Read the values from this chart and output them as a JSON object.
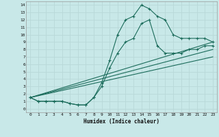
{
  "background_color": "#c8e8e8",
  "grid_color": "#b8d8d8",
  "line_color": "#1a6b5a",
  "xlabel": "Humidex (Indice chaleur)",
  "xlim": [
    -0.5,
    23.5
  ],
  "ylim": [
    -0.5,
    14.5
  ],
  "xticks": [
    0,
    1,
    2,
    3,
    4,
    5,
    6,
    7,
    8,
    9,
    10,
    11,
    12,
    13,
    14,
    15,
    16,
    17,
    18,
    19,
    20,
    21,
    22,
    23
  ],
  "yticks": [
    0,
    1,
    2,
    3,
    4,
    5,
    6,
    7,
    8,
    9,
    10,
    11,
    12,
    13,
    14
  ],
  "curve1_x": [
    0,
    1,
    2,
    3,
    4,
    5,
    6,
    7,
    8,
    9,
    10,
    11,
    12,
    13,
    14,
    15,
    16,
    17,
    18,
    19,
    20,
    21,
    22,
    23
  ],
  "curve1_y": [
    1.5,
    1.0,
    1.0,
    1.0,
    1.0,
    0.7,
    0.5,
    0.5,
    1.5,
    3.5,
    6.5,
    10.0,
    12.0,
    12.5,
    14.0,
    13.5,
    12.5,
    12.0,
    10.0,
    9.5,
    9.5,
    9.5,
    9.5,
    9.0
  ],
  "curve2_x": [
    0,
    1,
    2,
    3,
    4,
    5,
    6,
    7,
    8,
    9,
    10,
    11,
    12,
    13,
    14,
    15,
    16,
    17,
    18,
    19,
    20,
    21,
    22,
    23
  ],
  "curve2_y": [
    1.5,
    1.0,
    1.0,
    1.0,
    1.0,
    0.7,
    0.5,
    0.5,
    1.5,
    3.0,
    5.5,
    7.5,
    9.0,
    9.5,
    11.5,
    12.0,
    8.5,
    7.5,
    7.5,
    7.5,
    8.0,
    8.0,
    8.5,
    8.5
  ],
  "curve3_x": [
    0,
    23
  ],
  "curve3_y": [
    1.5,
    9.0
  ],
  "curve4_x": [
    0,
    23
  ],
  "curve4_y": [
    1.5,
    8.0
  ],
  "curve5_x": [
    0,
    23
  ],
  "curve5_y": [
    1.5,
    7.0
  ]
}
